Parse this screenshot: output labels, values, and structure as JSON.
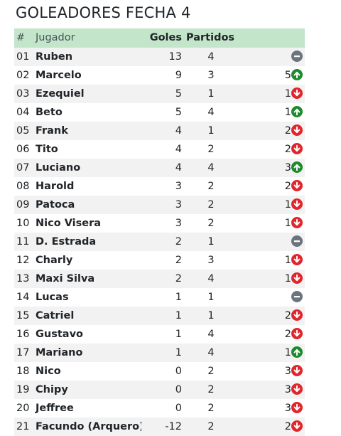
{
  "page_title": "GOLEADORES FECHA 4",
  "table": {
    "headers": {
      "num": "#",
      "player": "Jugador",
      "goals": "Goles",
      "matches": "Partidos"
    },
    "rows": [
      {
        "num": "01",
        "player": "Ruben",
        "goals": "13",
        "matches": "4",
        "change": "",
        "trend": "same"
      },
      {
        "num": "02",
        "player": "Marcelo",
        "goals": "9",
        "matches": "3",
        "change": "5",
        "trend": "up"
      },
      {
        "num": "03",
        "player": "Ezequiel",
        "goals": "5",
        "matches": "1",
        "change": "1",
        "trend": "down"
      },
      {
        "num": "04",
        "player": "Beto",
        "goals": "5",
        "matches": "4",
        "change": "1",
        "trend": "up"
      },
      {
        "num": "05",
        "player": "Frank",
        "goals": "4",
        "matches": "1",
        "change": "2",
        "trend": "down"
      },
      {
        "num": "06",
        "player": "Tito",
        "goals": "4",
        "matches": "2",
        "change": "2",
        "trend": "down"
      },
      {
        "num": "07",
        "player": "Luciano",
        "goals": "4",
        "matches": "4",
        "change": "3",
        "trend": "up"
      },
      {
        "num": "08",
        "player": "Harold",
        "goals": "3",
        "matches": "2",
        "change": "2",
        "trend": "down"
      },
      {
        "num": "09",
        "player": "Patoca",
        "goals": "3",
        "matches": "2",
        "change": "1",
        "trend": "down"
      },
      {
        "num": "10",
        "player": "Nico Visera",
        "goals": "3",
        "matches": "2",
        "change": "1",
        "trend": "down"
      },
      {
        "num": "11",
        "player": "D. Estrada",
        "goals": "2",
        "matches": "1",
        "change": "",
        "trend": "same"
      },
      {
        "num": "12",
        "player": "Charly",
        "goals": "2",
        "matches": "3",
        "change": "1",
        "trend": "down"
      },
      {
        "num": "13",
        "player": "Maxi Silva",
        "goals": "2",
        "matches": "4",
        "change": "1",
        "trend": "down"
      },
      {
        "num": "14",
        "player": "Lucas",
        "goals": "1",
        "matches": "1",
        "change": "",
        "trend": "same"
      },
      {
        "num": "15",
        "player": "Catriel",
        "goals": "1",
        "matches": "1",
        "change": "2",
        "trend": "down"
      },
      {
        "num": "16",
        "player": "Gustavo",
        "goals": "1",
        "matches": "4",
        "change": "2",
        "trend": "down"
      },
      {
        "num": "17",
        "player": "Mariano",
        "goals": "1",
        "matches": "4",
        "change": "1",
        "trend": "up"
      },
      {
        "num": "18",
        "player": "Nico",
        "goals": "0",
        "matches": "2",
        "change": "3",
        "trend": "down"
      },
      {
        "num": "19",
        "player": "Chipy",
        "goals": "0",
        "matches": "2",
        "change": "3",
        "trend": "down"
      },
      {
        "num": "20",
        "player": "Jeffree",
        "goals": "0",
        "matches": "2",
        "change": "3",
        "trend": "down"
      },
      {
        "num": "21",
        "player": "Facundo (Arquero)",
        "goals": "-12",
        "matches": "2",
        "change": "2",
        "trend": "down"
      }
    ]
  },
  "icons": {
    "up": {
      "name": "arrow-up-circle-icon",
      "color": "#1e8a2e"
    },
    "down": {
      "name": "arrow-down-circle-icon",
      "color": "#e0262c"
    },
    "same": {
      "name": "minus-circle-icon",
      "color": "#6c757d"
    }
  },
  "colors": {
    "header_bg": "#c3e6cb",
    "stripe_bg": "#f2f2f2",
    "text": "#212529"
  }
}
